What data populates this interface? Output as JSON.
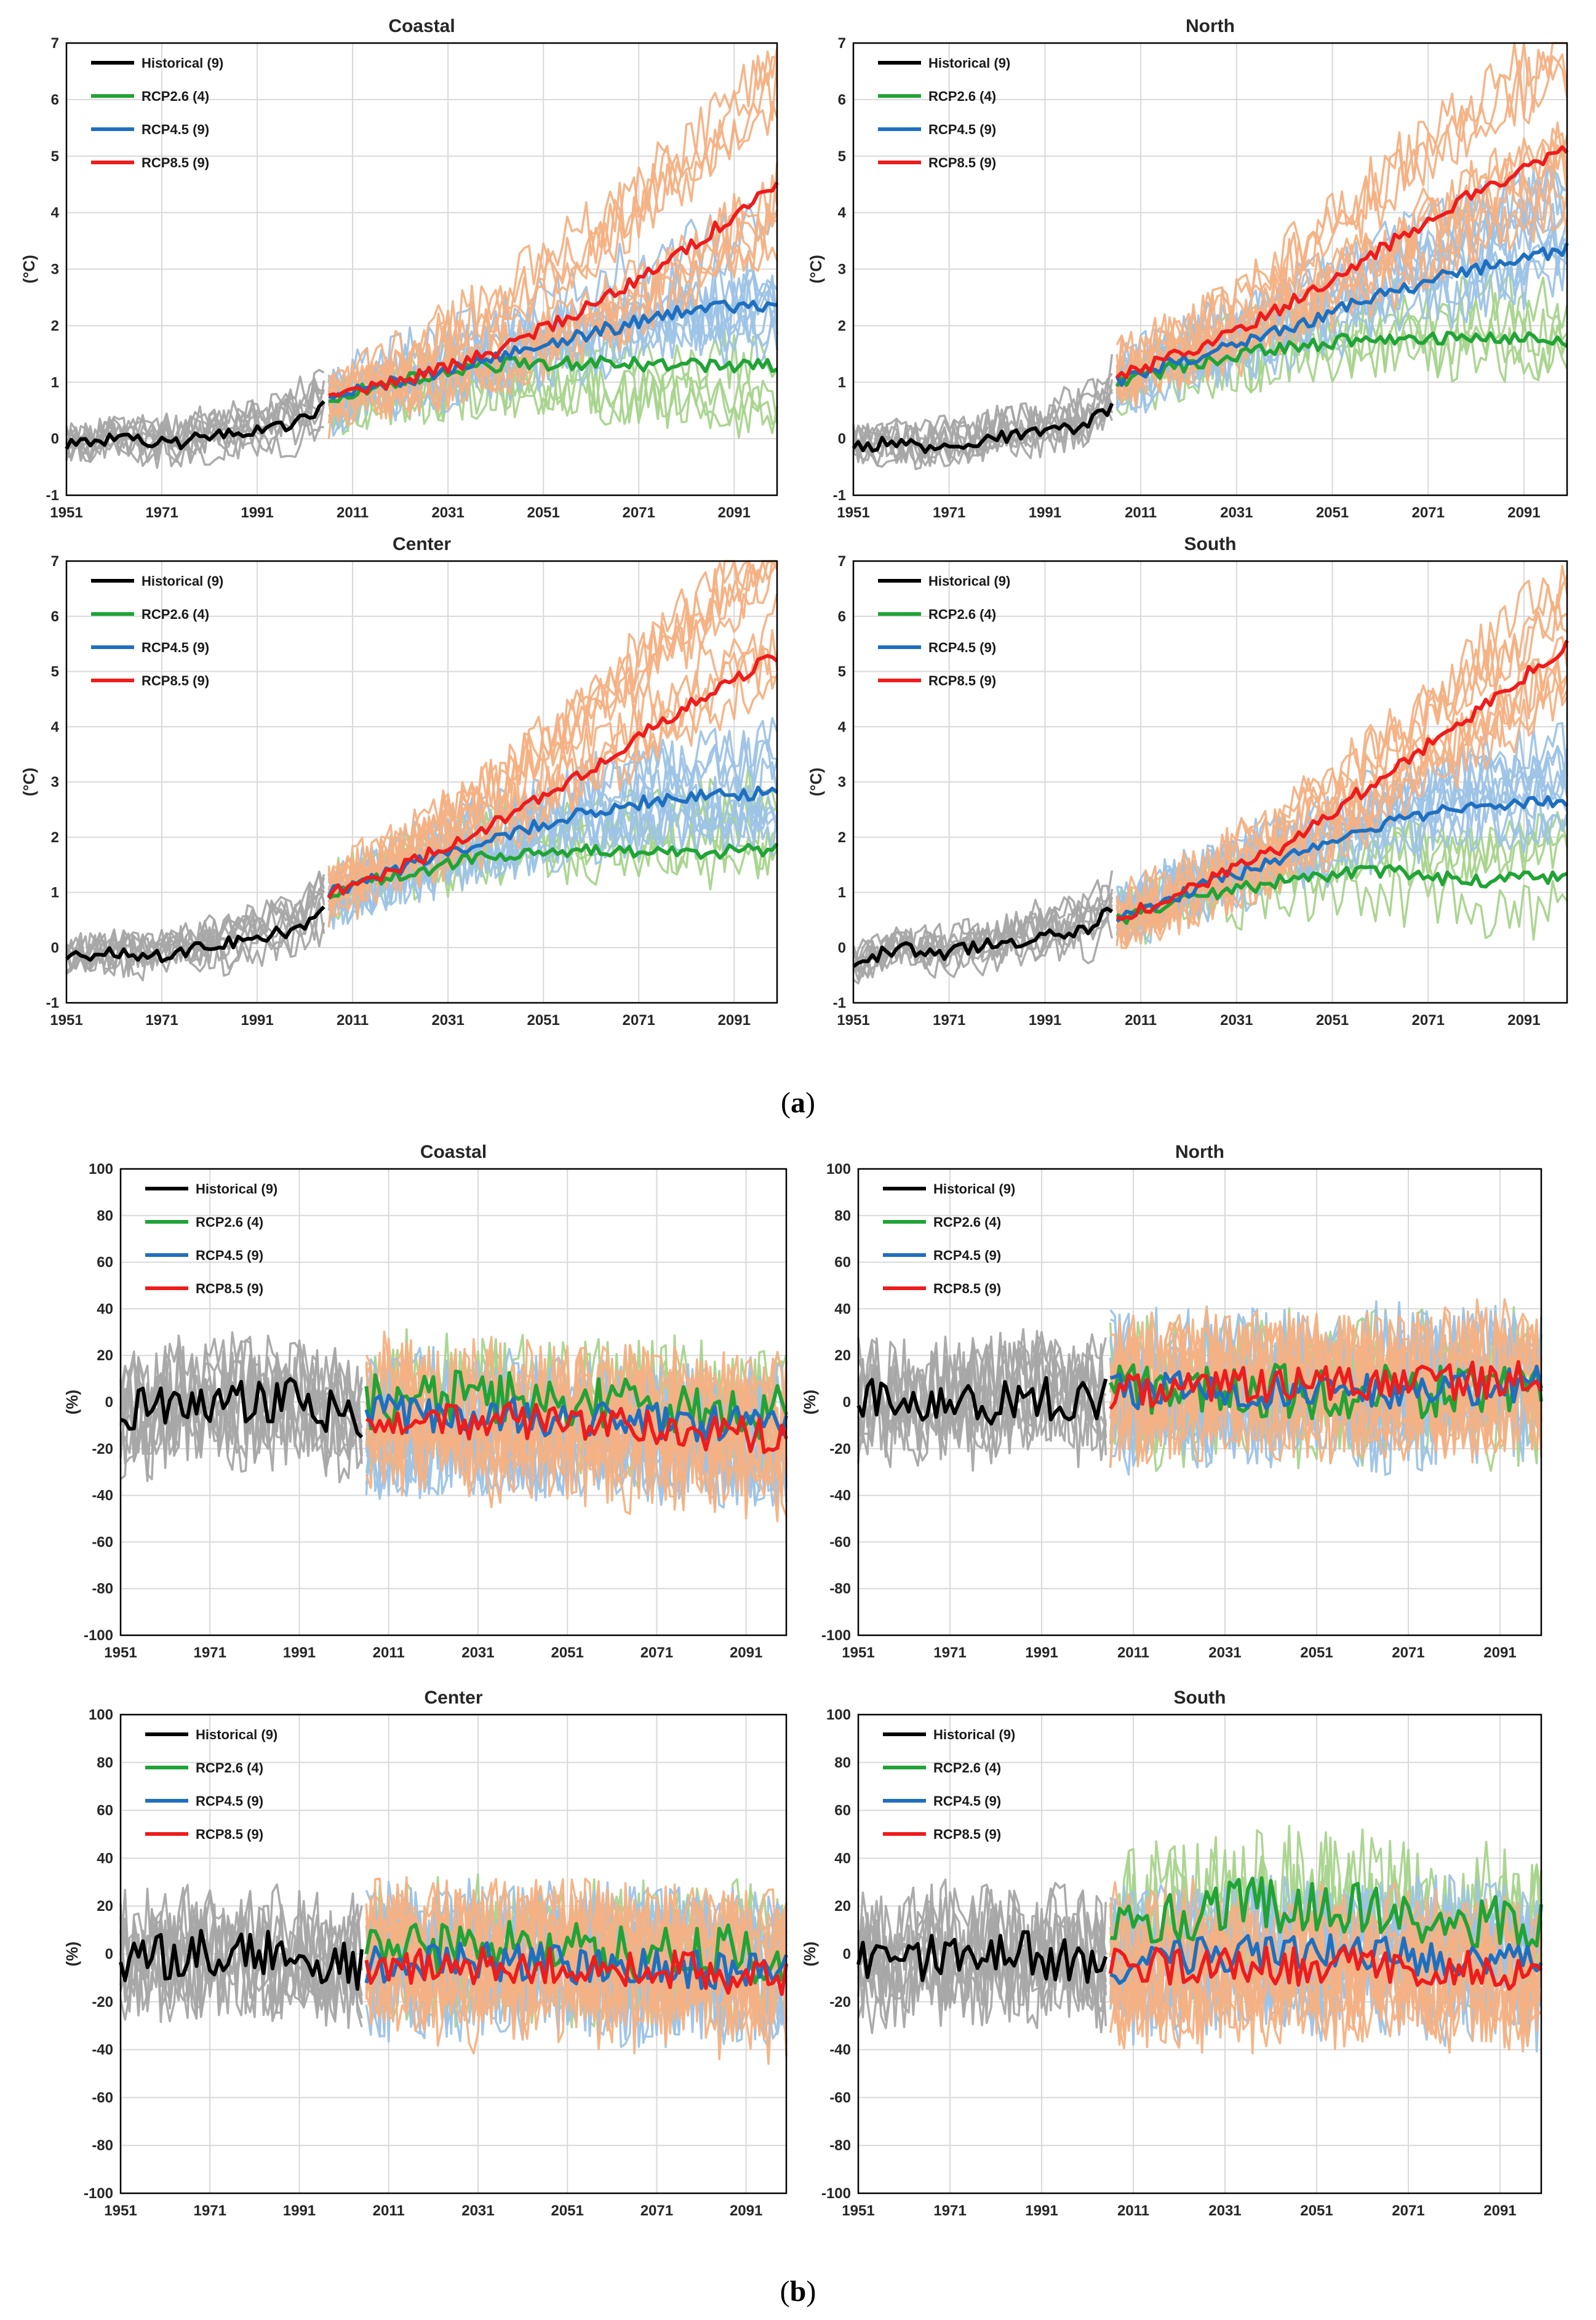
{
  "figure": {
    "captions": [
      {
        "open": "(",
        "letter": "a",
        "close": ")"
      },
      {
        "open": "(",
        "letter": "b",
        "close": ")"
      }
    ]
  },
  "colors": {
    "historical_mean": "#000000",
    "historical_members": "#a6a6a6",
    "rcp26": "#21a336",
    "rcp26_members": "#a8d48d",
    "rcp45": "#1f6fbf",
    "rcp45_members": "#9dc3e6",
    "rcp85": "#ee1c1c",
    "rcp85_members": "#f4b183",
    "grid": "#d9d9d9",
    "axis": "#000000"
  },
  "chart_data": [
    {
      "id": "a-coastal",
      "type": "line",
      "title": "Coastal",
      "group": "a",
      "ylabel": "(°C)",
      "xlim": [
        1951,
        2100
      ],
      "ylim": [
        -1,
        7
      ],
      "yticks": [
        -1,
        0,
        1,
        2,
        3,
        4,
        5,
        6,
        7
      ],
      "xtick_labels": [
        "1951",
        "1971",
        "1991",
        "2011",
        "2031",
        "2051",
        "2071",
        "2091"
      ],
      "legend": [
        "Historical (9)",
        "RCP2.6 (4)",
        "RCP4.5 (9)",
        "RCP8.5 (9)"
      ],
      "series": [
        {
          "name": "Historical (9)",
          "x": [
            1951,
            1960,
            1970,
            1980,
            1990,
            2000,
            2005
          ],
          "values": [
            -0.1,
            0.0,
            -0.1,
            0.0,
            0.15,
            0.3,
            0.6
          ]
        },
        {
          "name": "RCP2.6 (4)",
          "x": [
            2006,
            2020,
            2040,
            2060,
            2080,
            2100
          ],
          "values": [
            0.7,
            1.0,
            1.3,
            1.35,
            1.3,
            1.3
          ]
        },
        {
          "name": "RCP4.5 (9)",
          "x": [
            2006,
            2020,
            2040,
            2060,
            2080,
            2100
          ],
          "values": [
            0.7,
            1.0,
            1.4,
            1.85,
            2.25,
            2.4
          ]
        },
        {
          "name": "RCP8.5 (9)",
          "x": [
            2006,
            2020,
            2040,
            2060,
            2080,
            2100
          ],
          "values": [
            0.7,
            1.0,
            1.5,
            2.3,
            3.3,
            4.5
          ]
        }
      ]
    },
    {
      "id": "a-north",
      "type": "line",
      "title": "North",
      "group": "a",
      "ylabel": "(°C)",
      "xlim": [
        1951,
        2100
      ],
      "ylim": [
        -1,
        7
      ],
      "yticks": [
        -1,
        0,
        1,
        2,
        3,
        4,
        5,
        6,
        7
      ],
      "xtick_labels": [
        "1951",
        "1971",
        "1991",
        "2011",
        "2031",
        "2051",
        "2071",
        "2091"
      ],
      "legend": [
        "Historical (9)",
        "RCP2.6 (4)",
        "RCP4.5 (9)",
        "RCP8.5 (9)"
      ],
      "series": [
        {
          "name": "Historical (9)",
          "x": [
            1951,
            1960,
            1970,
            1980,
            1990,
            2000,
            2005
          ],
          "values": [
            -0.1,
            -0.1,
            -0.15,
            0.0,
            0.1,
            0.25,
            0.6
          ]
        },
        {
          "name": "RCP2.6 (4)",
          "x": [
            2006,
            2020,
            2040,
            2060,
            2080,
            2100
          ],
          "values": [
            1.0,
            1.3,
            1.6,
            1.8,
            1.8,
            1.75
          ]
        },
        {
          "name": "RCP4.5 (9)",
          "x": [
            2006,
            2020,
            2040,
            2060,
            2080,
            2100
          ],
          "values": [
            1.0,
            1.4,
            1.9,
            2.5,
            3.0,
            3.35
          ]
        },
        {
          "name": "RCP8.5 (9)",
          "x": [
            2006,
            2020,
            2040,
            2060,
            2080,
            2100
          ],
          "values": [
            1.1,
            1.5,
            2.3,
            3.3,
            4.3,
            5.1
          ]
        }
      ]
    },
    {
      "id": "a-center",
      "type": "line",
      "title": "Center",
      "group": "a",
      "ylabel": "(°C)",
      "xlim": [
        1951,
        2100
      ],
      "ylim": [
        -1,
        7
      ],
      "yticks": [
        -1,
        0,
        1,
        2,
        3,
        4,
        5,
        6,
        7
      ],
      "xtick_labels": [
        "1951",
        "1971",
        "1991",
        "2011",
        "2031",
        "2051",
        "2071",
        "2091"
      ],
      "legend": [
        "Historical (9)",
        "RCP2.6 (4)",
        "RCP4.5 (9)",
        "RCP8.5 (9)"
      ],
      "series": [
        {
          "name": "Historical (9)",
          "x": [
            1951,
            1960,
            1970,
            1980,
            1990,
            2000,
            2005
          ],
          "values": [
            -0.15,
            -0.1,
            -0.15,
            0.0,
            0.15,
            0.35,
            0.75
          ]
        },
        {
          "name": "RCP2.6 (4)",
          "x": [
            2006,
            2020,
            2040,
            2060,
            2080,
            2100
          ],
          "values": [
            1.0,
            1.3,
            1.65,
            1.75,
            1.7,
            1.8
          ]
        },
        {
          "name": "RCP4.5 (9)",
          "x": [
            2006,
            2020,
            2040,
            2060,
            2080,
            2100
          ],
          "values": [
            1.0,
            1.4,
            2.0,
            2.45,
            2.75,
            2.8
          ]
        },
        {
          "name": "RCP8.5 (9)",
          "x": [
            2006,
            2020,
            2040,
            2060,
            2080,
            2100
          ],
          "values": [
            1.0,
            1.4,
            2.2,
            3.2,
            4.3,
            5.3
          ]
        }
      ]
    },
    {
      "id": "a-south",
      "type": "line",
      "title": "South",
      "group": "a",
      "ylabel": "(°C)",
      "xlim": [
        1951,
        2100
      ],
      "ylim": [
        -1,
        7
      ],
      "yticks": [
        -1,
        0,
        1,
        2,
        3,
        4,
        5,
        6,
        7
      ],
      "xtick_labels": [
        "1951",
        "1971",
        "1991",
        "2011",
        "2031",
        "2051",
        "2071",
        "2091"
      ],
      "legend": [
        "Historical (9)",
        "RCP2.6 (4)",
        "RCP4.5 (9)",
        "RCP8.5 (9)"
      ],
      "series": [
        {
          "name": "Historical (9)",
          "x": [
            1951,
            1960,
            1970,
            1980,
            1990,
            2000,
            2005
          ],
          "values": [
            -0.3,
            0.0,
            -0.1,
            0.05,
            0.2,
            0.35,
            0.7
          ]
        },
        {
          "name": "RCP2.6 (4)",
          "x": [
            2006,
            2020,
            2040,
            2060,
            2080,
            2100
          ],
          "values": [
            0.5,
            0.9,
            1.2,
            1.4,
            1.2,
            1.3
          ]
        },
        {
          "name": "RCP4.5 (9)",
          "x": [
            2006,
            2020,
            2040,
            2060,
            2080,
            2100
          ],
          "values": [
            0.5,
            1.0,
            1.6,
            2.2,
            2.6,
            2.65
          ]
        },
        {
          "name": "RCP8.5 (9)",
          "x": [
            2006,
            2020,
            2040,
            2060,
            2080,
            2100
          ],
          "values": [
            0.5,
            1.0,
            1.8,
            3.0,
            4.2,
            5.5
          ]
        }
      ]
    },
    {
      "id": "b-coastal",
      "type": "line",
      "title": "Coastal",
      "group": "b",
      "ylabel": "(%)",
      "xlim": [
        1951,
        2100
      ],
      "ylim": [
        -100,
        100
      ],
      "yticks": [
        -100,
        -80,
        -60,
        -40,
        -20,
        0,
        20,
        40,
        60,
        80,
        100
      ],
      "xtick_labels": [
        "1951",
        "1971",
        "1991",
        "2011",
        "2031",
        "2051",
        "2071",
        "2091"
      ],
      "legend": [
        "Historical (9)",
        "RCP2.6 (4)",
        "RCP4.5 (9)",
        "RCP8.5 (9)"
      ],
      "series": [
        {
          "name": "Historical (9)",
          "x": [
            1951,
            1970,
            1990,
            2005
          ],
          "values": [
            -5,
            0,
            0,
            -8
          ]
        },
        {
          "name": "RCP2.6 (4)",
          "x": [
            2006,
            2030,
            2060,
            2100
          ],
          "values": [
            0,
            2,
            0,
            -5
          ]
        },
        {
          "name": "RCP4.5 (9)",
          "x": [
            2006,
            2030,
            2060,
            2100
          ],
          "values": [
            -5,
            -5,
            -8,
            -10
          ]
        },
        {
          "name": "RCP8.5 (9)",
          "x": [
            2006,
            2030,
            2060,
            2100
          ],
          "values": [
            -5,
            -8,
            -10,
            -15
          ]
        }
      ]
    },
    {
      "id": "b-north",
      "type": "line",
      "title": "North",
      "group": "b",
      "ylabel": "(%)",
      "xlim": [
        1951,
        2100
      ],
      "ylim": [
        -100,
        100
      ],
      "yticks": [
        -100,
        -80,
        -60,
        -40,
        -20,
        0,
        20,
        40,
        60,
        80,
        100
      ],
      "xtick_labels": [
        "1951",
        "1971",
        "1991",
        "2011",
        "2031",
        "2051",
        "2071",
        "2091"
      ],
      "legend": [
        "Historical (9)",
        "RCP2.6 (4)",
        "RCP4.5 (9)",
        "RCP8.5 (9)"
      ],
      "series": [
        {
          "name": "Historical (9)",
          "x": [
            1951,
            1970,
            1990,
            2005
          ],
          "values": [
            0,
            -2,
            2,
            0
          ]
        },
        {
          "name": "RCP2.6 (4)",
          "x": [
            2006,
            2030,
            2060,
            2100
          ],
          "values": [
            5,
            5,
            5,
            5
          ]
        },
        {
          "name": "RCP4.5 (9)",
          "x": [
            2006,
            2030,
            2060,
            2100
          ],
          "values": [
            5,
            5,
            5,
            8
          ]
        },
        {
          "name": "RCP8.5 (9)",
          "x": [
            2006,
            2030,
            2060,
            2100
          ],
          "values": [
            5,
            8,
            8,
            10
          ]
        }
      ]
    },
    {
      "id": "b-center",
      "type": "line",
      "title": "Center",
      "group": "b",
      "ylabel": "(%)",
      "xlim": [
        1951,
        2100
      ],
      "ylim": [
        -100,
        100
      ],
      "yticks": [
        -100,
        -80,
        -60,
        -40,
        -20,
        0,
        20,
        40,
        60,
        80,
        100
      ],
      "xtick_labels": [
        "1951",
        "1971",
        "1991",
        "2011",
        "2031",
        "2051",
        "2071",
        "2091"
      ],
      "legend": [
        "Historical (9)",
        "RCP2.6 (4)",
        "RCP4.5 (9)",
        "RCP8.5 (9)"
      ],
      "series": [
        {
          "name": "Historical (9)",
          "x": [
            1951,
            1970,
            1990,
            2005
          ],
          "values": [
            -3,
            0,
            0,
            -5
          ]
        },
        {
          "name": "RCP2.6 (4)",
          "x": [
            2006,
            2030,
            2060,
            2100
          ],
          "values": [
            0,
            3,
            0,
            0
          ]
        },
        {
          "name": "RCP4.5 (9)",
          "x": [
            2006,
            2030,
            2060,
            2100
          ],
          "values": [
            -5,
            -3,
            -5,
            -8
          ]
        },
        {
          "name": "RCP8.5 (9)",
          "x": [
            2006,
            2030,
            2060,
            2100
          ],
          "values": [
            -5,
            -5,
            -5,
            -10
          ]
        }
      ]
    },
    {
      "id": "b-south",
      "type": "line",
      "title": "South",
      "group": "b",
      "ylabel": "(%)",
      "xlim": [
        1951,
        2100
      ],
      "ylim": [
        -100,
        100
      ],
      "yticks": [
        -100,
        -80,
        -60,
        -40,
        -20,
        0,
        20,
        40,
        60,
        80,
        100
      ],
      "xtick_labels": [
        "1951",
        "1971",
        "1991",
        "2011",
        "2031",
        "2051",
        "2071",
        "2091"
      ],
      "legend": [
        "Historical (9)",
        "RCP2.6 (4)",
        "RCP4.5 (9)",
        "RCP8.5 (9)"
      ],
      "series": [
        {
          "name": "Historical (9)",
          "x": [
            1951,
            1970,
            1990,
            2005
          ],
          "values": [
            -5,
            0,
            0,
            -5
          ]
        },
        {
          "name": "RCP2.6 (4)",
          "x": [
            2006,
            2030,
            2060,
            2100
          ],
          "values": [
            10,
            20,
            20,
            10
          ]
        },
        {
          "name": "RCP4.5 (9)",
          "x": [
            2006,
            2030,
            2060,
            2100
          ],
          "values": [
            -5,
            0,
            0,
            -5
          ]
        },
        {
          "name": "RCP8.5 (9)",
          "x": [
            2006,
            2030,
            2060,
            2100
          ],
          "values": [
            -5,
            -5,
            -5,
            -8
          ]
        }
      ]
    }
  ]
}
